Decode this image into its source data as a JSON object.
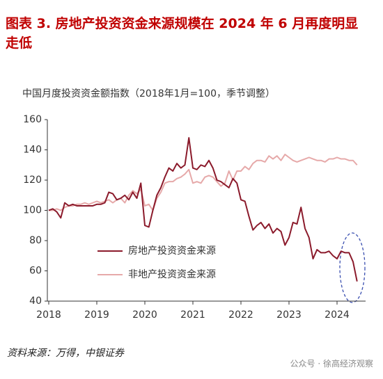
{
  "title": "图表 3. 房地产投资资金来源规模在 2024 年 6 月再度明显走低",
  "source": "资料来源：万得，中银证券",
  "watermark": "公众号 · 徐高经济观察",
  "chart_data": {
    "type": "line",
    "subtitle": "中国月度投资资金额指数（2018年1月=100，季节调整）",
    "categories": [
      "2018",
      null,
      null,
      null,
      null,
      null,
      null,
      null,
      null,
      null,
      null,
      null,
      "2019",
      null,
      null,
      null,
      null,
      null,
      null,
      null,
      null,
      null,
      null,
      null,
      "2020",
      null,
      null,
      null,
      null,
      null,
      null,
      null,
      null,
      null,
      null,
      null,
      "2021",
      null,
      null,
      null,
      null,
      null,
      null,
      null,
      null,
      null,
      null,
      null,
      "2022",
      null,
      null,
      null,
      null,
      null,
      null,
      null,
      null,
      null,
      null,
      null,
      "2023",
      null,
      null,
      null,
      null,
      null,
      null,
      null,
      null,
      null,
      null,
      null,
      "2024",
      null,
      null,
      null,
      null,
      null
    ],
    "ylim": [
      40,
      160
    ],
    "yticks": [
      40,
      60,
      80,
      100,
      120,
      140,
      160
    ],
    "grid": false,
    "legend": "center-left",
    "series": [
      {
        "name": "房地产投资资金来源",
        "color": "#8b1a2b",
        "values": [
          100,
          101,
          99,
          95,
          105,
          103,
          104,
          103,
          103,
          103,
          103,
          103,
          104,
          104,
          105,
          112,
          111,
          107,
          108,
          110,
          107,
          112,
          108,
          118,
          90,
          89,
          100,
          110,
          115,
          122,
          128,
          126,
          131,
          128,
          130,
          148,
          128,
          127,
          130,
          129,
          133,
          128,
          120,
          119,
          117,
          115,
          121,
          118,
          107,
          106,
          96,
          87,
          90,
          92,
          88,
          91,
          85,
          88,
          86,
          77,
          82,
          92,
          91,
          102,
          88,
          82,
          68,
          74,
          72,
          72,
          73,
          70,
          68,
          73,
          72,
          72,
          66,
          53
        ]
      },
      {
        "name": "非地产投资资金来源",
        "color": "#e6a9a9",
        "values": [
          100,
          100,
          101,
          100,
          102,
          103,
          103,
          104,
          104,
          105,
          104,
          105,
          106,
          105,
          106,
          107,
          105,
          107,
          108,
          105,
          110,
          113,
          111,
          114,
          103,
          104,
          100,
          108,
          112,
          118,
          119,
          119,
          121,
          122,
          124,
          127,
          118,
          119,
          118,
          122,
          123,
          122,
          119,
          116,
          118,
          126,
          120,
          126,
          126,
          129,
          127,
          131,
          133,
          133,
          132,
          136,
          134,
          136,
          133,
          137,
          135,
          133,
          132,
          133,
          134,
          135,
          134,
          133,
          133,
          132,
          134,
          134,
          135,
          134,
          134,
          133,
          133,
          130
        ]
      }
    ]
  }
}
